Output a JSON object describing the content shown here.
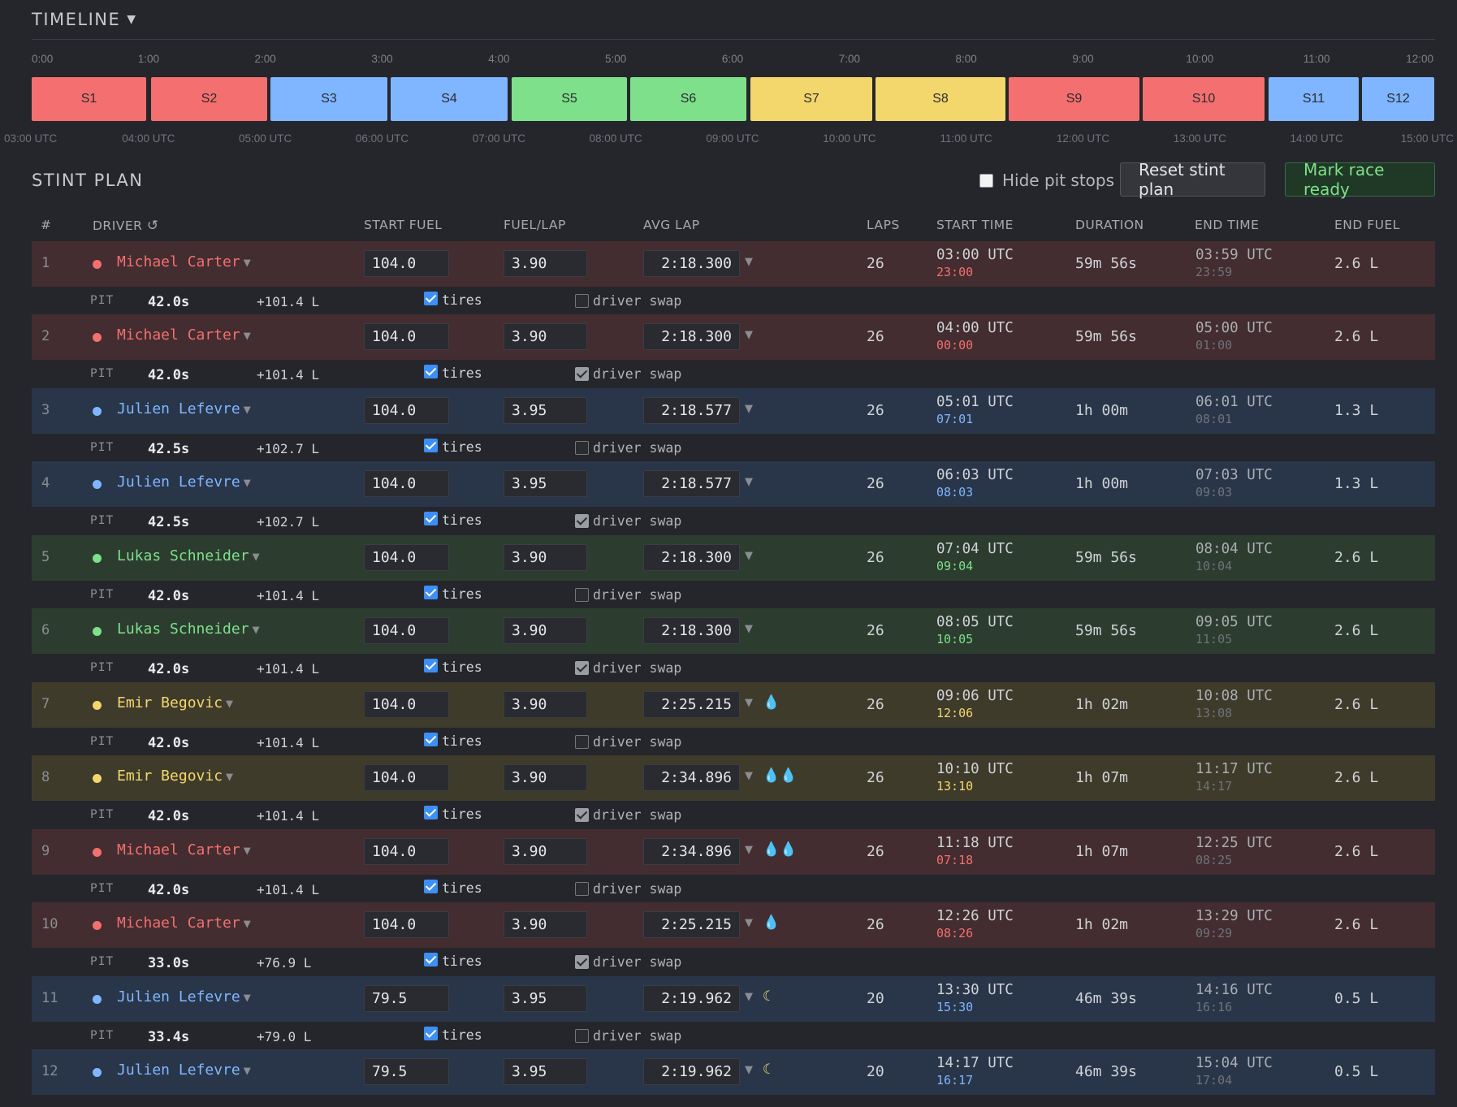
{
  "timeline": {
    "title": "TIMELINE",
    "hour_ticks": [
      "0:00",
      "1:00",
      "2:00",
      "3:00",
      "4:00",
      "5:00",
      "6:00",
      "7:00",
      "8:00",
      "9:00",
      "10:00",
      "11:00",
      "12:00"
    ],
    "utc_ticks": [
      "03:00 UTC",
      "04:00 UTC",
      "05:00 UTC",
      "06:00 UTC",
      "07:00 UTC",
      "08:00 UTC",
      "09:00 UTC",
      "10:00 UTC",
      "11:00 UTC",
      "12:00 UTC",
      "13:00 UTC",
      "14:00 UTC",
      "15:00 UTC"
    ],
    "stints": [
      "S1",
      "S2",
      "S3",
      "S4",
      "S5",
      "S6",
      "S7",
      "S8",
      "S9",
      "S10",
      "S11",
      "S12"
    ]
  },
  "stint_plan": {
    "title": "STINT PLAN",
    "hide_pit_label": "Hide pit stops",
    "reset_label": "Reset stint plan",
    "ready_label": "Mark race ready",
    "headers": {
      "num": "#",
      "driver": "DRIVER",
      "start_fuel": "START FUEL",
      "fuel_lap": "FUEL/LAP",
      "avg_lap": "AVG LAP",
      "laps": "LAPS",
      "start_time": "START TIME",
      "duration": "DURATION",
      "end_time": "END TIME",
      "end_fuel": "END FUEL"
    },
    "pit_label": "PIT",
    "tires_label": "tires",
    "swap_label": "driver swap",
    "colors": {
      "red": "#f46f6f",
      "blue": "#7fb6ff",
      "green": "#7ee08a",
      "yellow": "#f3d76c"
    },
    "rows": [
      {
        "num": "1",
        "driver": "Michael Carter",
        "color": "red",
        "start_fuel": "104.0",
        "fuel_lap": "3.90",
        "avg_lap": "2:18.300",
        "weather": "",
        "laps": "26",
        "start_utc": "03:00 UTC",
        "start_local": "23:00",
        "duration": "59m 56s",
        "end_utc": "03:59 UTC",
        "end_local": "23:59",
        "end_fuel": "2.6 L",
        "pit": {
          "time": "42.0s",
          "fuel": "+101.4 L",
          "tires": true,
          "swap": false
        }
      },
      {
        "num": "2",
        "driver": "Michael Carter",
        "color": "red",
        "start_fuel": "104.0",
        "fuel_lap": "3.90",
        "avg_lap": "2:18.300",
        "weather": "",
        "laps": "26",
        "start_utc": "04:00 UTC",
        "start_local": "00:00",
        "duration": "59m 56s",
        "end_utc": "05:00 UTC",
        "end_local": "01:00",
        "end_fuel": "2.6 L",
        "pit": {
          "time": "42.0s",
          "fuel": "+101.4 L",
          "tires": true,
          "swap": true
        }
      },
      {
        "num": "3",
        "driver": "Julien Lefevre",
        "color": "blue",
        "start_fuel": "104.0",
        "fuel_lap": "3.95",
        "avg_lap": "2:18.577",
        "weather": "",
        "laps": "26",
        "start_utc": "05:01 UTC",
        "start_local": "07:01",
        "duration": "1h 00m",
        "end_utc": "06:01 UTC",
        "end_local": "08:01",
        "end_fuel": "1.3 L",
        "pit": {
          "time": "42.5s",
          "fuel": "+102.7 L",
          "tires": true,
          "swap": false
        }
      },
      {
        "num": "4",
        "driver": "Julien Lefevre",
        "color": "blue",
        "start_fuel": "104.0",
        "fuel_lap": "3.95",
        "avg_lap": "2:18.577",
        "weather": "",
        "laps": "26",
        "start_utc": "06:03 UTC",
        "start_local": "08:03",
        "duration": "1h 00m",
        "end_utc": "07:03 UTC",
        "end_local": "09:03",
        "end_fuel": "1.3 L",
        "pit": {
          "time": "42.5s",
          "fuel": "+102.7 L",
          "tires": true,
          "swap": true
        }
      },
      {
        "num": "5",
        "driver": "Lukas Schneider",
        "color": "green",
        "start_fuel": "104.0",
        "fuel_lap": "3.90",
        "avg_lap": "2:18.300",
        "weather": "",
        "laps": "26",
        "start_utc": "07:04 UTC",
        "start_local": "09:04",
        "duration": "59m 56s",
        "end_utc": "08:04 UTC",
        "end_local": "10:04",
        "end_fuel": "2.6 L",
        "pit": {
          "time": "42.0s",
          "fuel": "+101.4 L",
          "tires": true,
          "swap": false
        }
      },
      {
        "num": "6",
        "driver": "Lukas Schneider",
        "color": "green",
        "start_fuel": "104.0",
        "fuel_lap": "3.90",
        "avg_lap": "2:18.300",
        "weather": "",
        "laps": "26",
        "start_utc": "08:05 UTC",
        "start_local": "10:05",
        "duration": "59m 56s",
        "end_utc": "09:05 UTC",
        "end_local": "11:05",
        "end_fuel": "2.6 L",
        "pit": {
          "time": "42.0s",
          "fuel": "+101.4 L",
          "tires": true,
          "swap": true
        }
      },
      {
        "num": "7",
        "driver": "Emir Begovic",
        "color": "yellow",
        "start_fuel": "104.0",
        "fuel_lap": "3.90",
        "avg_lap": "2:25.215",
        "weather": "rain1",
        "laps": "26",
        "start_utc": "09:06 UTC",
        "start_local": "12:06",
        "duration": "1h 02m",
        "end_utc": "10:08 UTC",
        "end_local": "13:08",
        "end_fuel": "2.6 L",
        "pit": {
          "time": "42.0s",
          "fuel": "+101.4 L",
          "tires": true,
          "swap": false
        }
      },
      {
        "num": "8",
        "driver": "Emir Begovic",
        "color": "yellow",
        "start_fuel": "104.0",
        "fuel_lap": "3.90",
        "avg_lap": "2:34.896",
        "weather": "rain2",
        "laps": "26",
        "start_utc": "10:10 UTC",
        "start_local": "13:10",
        "duration": "1h 07m",
        "end_utc": "11:17 UTC",
        "end_local": "14:17",
        "end_fuel": "2.6 L",
        "pit": {
          "time": "42.0s",
          "fuel": "+101.4 L",
          "tires": true,
          "swap": true
        }
      },
      {
        "num": "9",
        "driver": "Michael Carter",
        "color": "red",
        "start_fuel": "104.0",
        "fuel_lap": "3.90",
        "avg_lap": "2:34.896",
        "weather": "rain2",
        "laps": "26",
        "start_utc": "11:18 UTC",
        "start_local": "07:18",
        "duration": "1h 07m",
        "end_utc": "12:25 UTC",
        "end_local": "08:25",
        "end_fuel": "2.6 L",
        "pit": {
          "time": "42.0s",
          "fuel": "+101.4 L",
          "tires": true,
          "swap": false
        }
      },
      {
        "num": "10",
        "driver": "Michael Carter",
        "color": "red",
        "start_fuel": "104.0",
        "fuel_lap": "3.90",
        "avg_lap": "2:25.215",
        "weather": "rain1",
        "laps": "26",
        "start_utc": "12:26 UTC",
        "start_local": "08:26",
        "duration": "1h 02m",
        "end_utc": "13:29 UTC",
        "end_local": "09:29",
        "end_fuel": "2.6 L",
        "pit": {
          "time": "33.0s",
          "fuel": "+76.9 L",
          "tires": true,
          "swap": true
        }
      },
      {
        "num": "11",
        "driver": "Julien Lefevre",
        "color": "blue",
        "start_fuel": "79.5",
        "fuel_lap": "3.95",
        "avg_lap": "2:19.962",
        "weather": "night",
        "laps": "20",
        "start_utc": "13:30 UTC",
        "start_local": "15:30",
        "duration": "46m 39s",
        "end_utc": "14:16 UTC",
        "end_local": "16:16",
        "end_fuel": "0.5 L",
        "pit": {
          "time": "33.4s",
          "fuel": "+79.0 L",
          "tires": true,
          "swap": false
        }
      },
      {
        "num": "12",
        "driver": "Julien Lefevre",
        "color": "blue",
        "start_fuel": "79.5",
        "fuel_lap": "3.95",
        "avg_lap": "2:19.962",
        "weather": "night",
        "laps": "20",
        "start_utc": "14:17 UTC",
        "start_local": "16:17",
        "duration": "46m 39s",
        "end_utc": "15:04 UTC",
        "end_local": "17:04",
        "end_fuel": "0.5 L",
        "pit": null
      }
    ]
  }
}
